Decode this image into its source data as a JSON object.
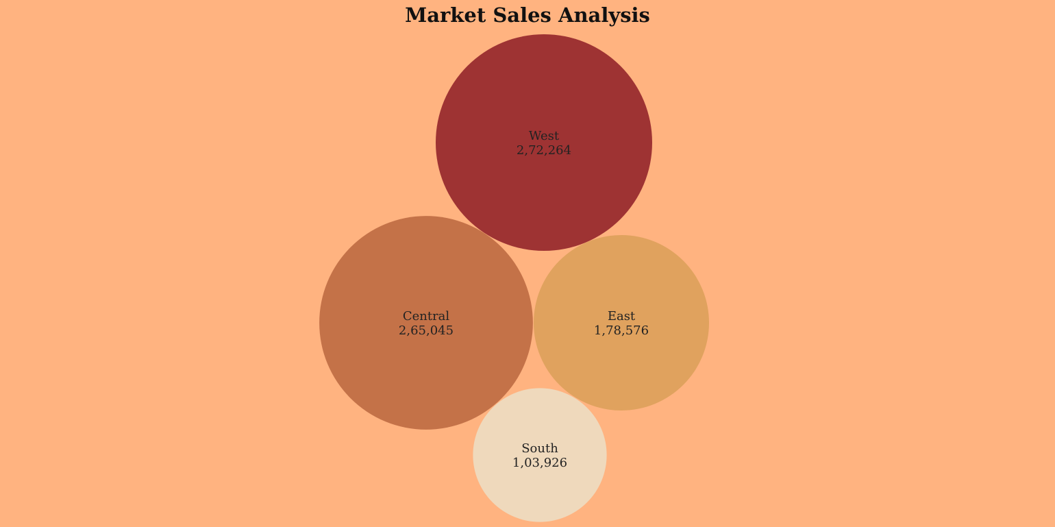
{
  "chart_data": {
    "type": "bubble",
    "title": "Market Sales Analysis",
    "series": [
      {
        "name": "West",
        "value_label": "2,72,264",
        "value": 272264,
        "color": "#9E3333"
      },
      {
        "name": "Central",
        "value_label": "2,65,045",
        "value": 265045,
        "color": "#C47248"
      },
      {
        "name": "East",
        "value_label": "1,78,576",
        "value": 178576,
        "color": "#E0A25E"
      },
      {
        "name": "South",
        "value_label": "1,03,926",
        "value": 103926,
        "color": "#EFD9BC"
      }
    ],
    "background_color": "#FFB380"
  }
}
